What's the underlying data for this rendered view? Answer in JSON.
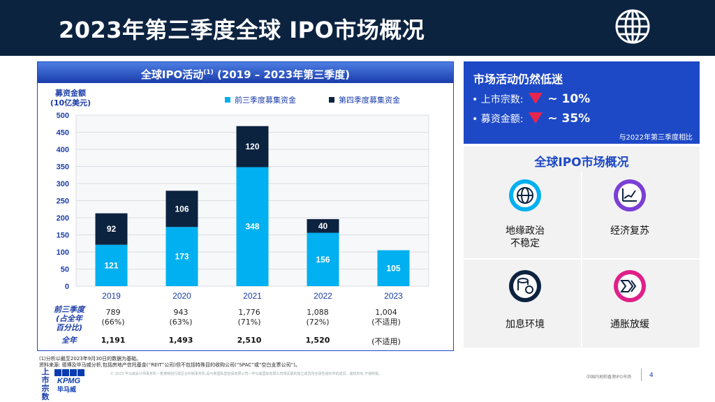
{
  "title": "2023年第三季度全球 IPO市场概况",
  "chart_panel": {
    "title": "全球IPO活动",
    "title_sup": "(1)",
    "title_suffix": " (2019 – 2023年第三季度)",
    "ylabel_line1": "募资金额",
    "ylabel_line2": "(10亿美元)",
    "legend": [
      {
        "label": "前三季度募集资金",
        "color": "#00b0f0"
      },
      {
        "label": "第四季度募集资金",
        "color": "#0c2340"
      }
    ]
  },
  "chart_data": {
    "type": "bar",
    "stacked": true,
    "categories": [
      "2019",
      "2020",
      "2021",
      "2022",
      "2023"
    ],
    "series": [
      {
        "name": "前三季度募集资金",
        "values": [
          121,
          173,
          348,
          156,
          105
        ],
        "color": "#00b0f0"
      },
      {
        "name": "第四季度募集资金",
        "values": [
          92,
          106,
          120,
          40,
          null
        ],
        "color": "#0c2340"
      }
    ],
    "ylabel": "募资金额 (10亿美元)",
    "ylim": [
      0,
      500
    ],
    "yticks": [
      0,
      50,
      100,
      150,
      200,
      250,
      300,
      350,
      400,
      450,
      500
    ],
    "grid": true
  },
  "table": {
    "vertical_label": "上市宗数",
    "row1_label_line1": "前三季度",
    "row1_label_line2": "(占全年",
    "row1_label_line3": "百分比)",
    "row2_label": "全年",
    "row1": [
      {
        "count": "789",
        "pct": "(66%)"
      },
      {
        "count": "943",
        "pct": "(63%)"
      },
      {
        "count": "1,776",
        "pct": "(71%)"
      },
      {
        "count": "1,088",
        "pct": "(72%)"
      },
      {
        "count": "1,004",
        "pct": "(不适用)"
      }
    ],
    "row2": [
      "1,191",
      "1,493",
      "2,510",
      "1,520",
      "(不适用)"
    ]
  },
  "market": {
    "heading": "市场活动仍然低迷",
    "deals_label": "• 上市宗数:",
    "deals_value": "~ 10%",
    "proceeds_label": "• 募资金额:",
    "proceeds_value": "~ 35%",
    "note": "与2022年第三季度相比",
    "arrow_color": "#e8254d"
  },
  "overview": {
    "title": "全球IPO市场概况",
    "items": [
      {
        "icon": "globe-icon",
        "label_line1": "地缘政治",
        "label_line2": "不稳定",
        "color": "#00b0f0"
      },
      {
        "icon": "growth-chart-icon",
        "label_line1": "经济复苏",
        "label_line2": "",
        "color": "#7b3fd6"
      },
      {
        "icon": "coins-percent-icon",
        "label_line1": "加息环境",
        "label_line2": "",
        "color": "#0c2340"
      },
      {
        "icon": "arrows-forward-icon",
        "label_line1": "通胀放缓",
        "label_line2": "",
        "color": "#e0208a"
      }
    ]
  },
  "footnotes": {
    "note1": "(1)分析以截至2023年9月30日的数据为基础。",
    "note2": "资料来源: 德博及毕马威分析,包括房地产信托基金(“REIT”公司)但不包括特殊目的收购公司(“SPAC”或“空白支票公司”)。",
    "copyright": "© 2023 毕马威会计师事务所—香港特别行政区合伙制事务所,是与英国私营担保有限公司—毕马威国际有限公司相关联的独立成员所全球性组织中的成员。版权所有,不得转载。"
  },
  "brand": {
    "logo": "KPMG",
    "name": "毕马威"
  },
  "footer": {
    "text": "中国内地和香港IPO市场",
    "page": "4"
  }
}
